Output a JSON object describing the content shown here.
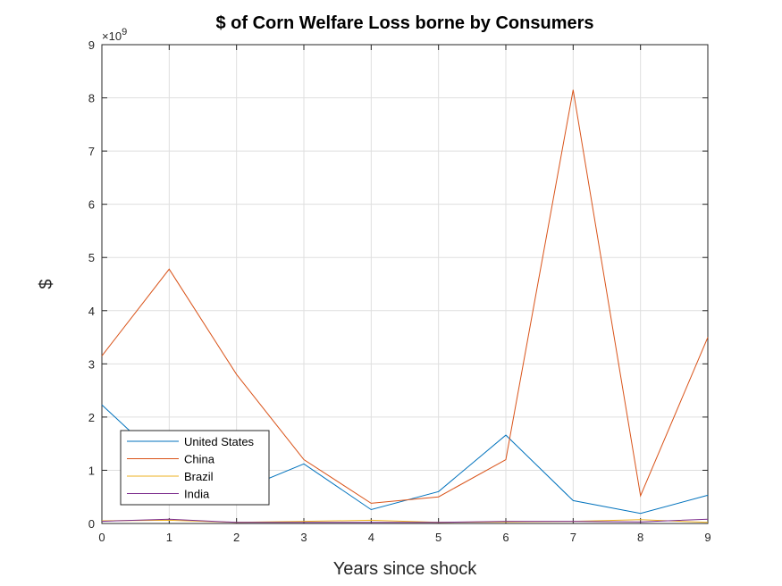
{
  "chart_data": {
    "type": "line",
    "title": "$  of Corn Welfare Loss borne by Consumers",
    "xlabel": "Years since shock",
    "ylabel": "$",
    "y_exponent_label": "×10",
    "y_exponent_power": "9",
    "x": [
      0,
      1,
      2,
      3,
      4,
      5,
      6,
      7,
      8,
      9
    ],
    "xlim": [
      0,
      9
    ],
    "ylim": [
      0,
      9
    ],
    "x_ticks": [
      0,
      1,
      2,
      3,
      4,
      5,
      6,
      7,
      8,
      9
    ],
    "y_ticks": [
      0,
      1,
      2,
      3,
      4,
      5,
      6,
      7,
      8,
      9
    ],
    "grid": true,
    "legend_position": "bottom-left",
    "series": [
      {
        "name": "United States",
        "color": "#0072BD",
        "values": [
          2.23,
          1.05,
          0.6,
          1.12,
          0.26,
          0.6,
          1.66,
          0.43,
          0.19,
          0.53
        ]
      },
      {
        "name": "China",
        "color": "#D95319",
        "values": [
          3.15,
          4.78,
          2.8,
          1.2,
          0.38,
          0.5,
          1.2,
          8.15,
          0.52,
          3.5
        ]
      },
      {
        "name": "Brazil",
        "color": "#EDB120",
        "values": [
          0.05,
          0.06,
          0.02,
          0.04,
          0.06,
          0.02,
          0.03,
          0.04,
          0.07,
          0.02
        ]
      },
      {
        "name": "India",
        "color": "#7E2F8E",
        "values": [
          0.04,
          0.08,
          0.02,
          0.02,
          0.02,
          0.02,
          0.04,
          0.04,
          0.03,
          0.08
        ]
      }
    ]
  }
}
